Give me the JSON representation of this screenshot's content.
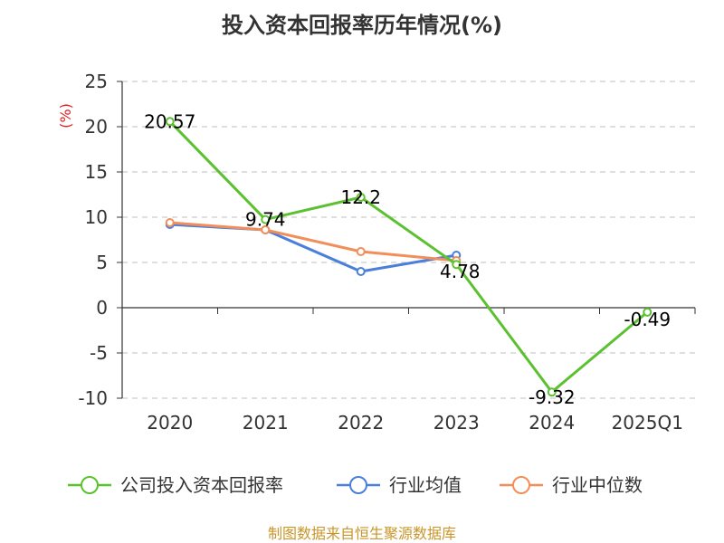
{
  "chart_data": {
    "type": "line",
    "title": "投入资本回报率历年情况(%)",
    "ylabel": "(%)",
    "categories": [
      "2020",
      "2021",
      "2022",
      "2023",
      "2024",
      "2025Q1"
    ],
    "ylim": [
      -10,
      25
    ],
    "yticks": [
      25,
      20,
      15,
      10,
      5,
      0,
      -5,
      -10
    ],
    "grid": true,
    "legend_position": "bottom",
    "series": [
      {
        "name": "公司投入资本回报率",
        "color": "#5cc130",
        "values": [
          20.57,
          9.74,
          12.2,
          4.78,
          -9.32,
          -0.49
        ],
        "labels": [
          "20.57",
          "9.74",
          "12.2",
          "4.78",
          "-9.32",
          "-0.49"
        ]
      },
      {
        "name": "行业均值",
        "color": "#4a7fdb",
        "values": [
          9.2,
          8.6,
          4.0,
          5.8,
          null,
          null
        ]
      },
      {
        "name": "行业中位数",
        "color": "#f28e5a",
        "values": [
          9.4,
          8.6,
          6.2,
          5.2,
          null,
          null
        ]
      }
    ],
    "source": "制图数据来自恒生聚源数据库"
  }
}
